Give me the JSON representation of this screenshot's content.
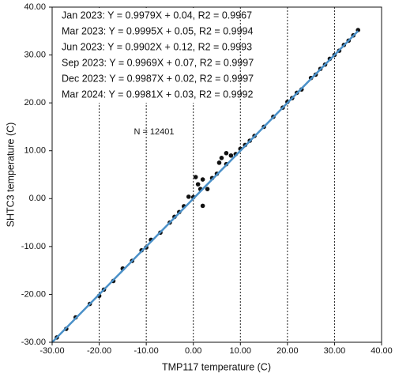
{
  "chart_data": {
    "type": "scatter",
    "xlabel": "TMP117 temperature (C)",
    "ylabel": "SHTC3 temperature (C)",
    "annotations": [
      "Jan 2023: Y = 0.9979X + 0.04, R2 = 0.9967",
      "Mar 2023: Y = 0.9995X + 0.05, R2 = 0.9994",
      "Jun 2023: Y = 0.9902X + 0.12, R2 = 0.9993",
      "Sep 2023: Y = 0.9969X + 0.07, R2 = 0.9997",
      "Dec 2023: Y = 0.9987X + 0.02, R2 = 0.9997",
      "Mar 2024: Y = 0.9981X + 0.03, R2 = 0.9992",
      "N = 12401"
    ],
    "xlim": [
      -30,
      40
    ],
    "ylim": [
      -30,
      40
    ],
    "xticks": [
      {
        "value": -30,
        "label": "-30.00"
      },
      {
        "value": -20,
        "label": "-20.00"
      },
      {
        "value": -10,
        "label": "-10.00"
      },
      {
        "value": 0,
        "label": "0.00"
      },
      {
        "value": 10,
        "label": "10.00"
      },
      {
        "value": 20,
        "label": "20.00"
      },
      {
        "value": 30,
        "label": "30.00"
      },
      {
        "value": 40,
        "label": "40.00"
      }
    ],
    "yticks": [
      {
        "value": -30,
        "label": "-30.00"
      },
      {
        "value": -20,
        "label": "-20.00"
      },
      {
        "value": -10,
        "label": "-10.00"
      },
      {
        "value": 0,
        "label": "0.00"
      },
      {
        "value": 10,
        "label": "10.00"
      },
      {
        "value": 20,
        "label": "20.00"
      },
      {
        "value": 30,
        "label": "30.00"
      },
      {
        "value": 40,
        "label": "40.00"
      }
    ],
    "xgrid": true,
    "series": [
      {
        "type": "scatter",
        "color": "#111111",
        "x": [
          -29,
          -27,
          -25,
          -22,
          -20,
          -19,
          -17,
          -15,
          -13,
          -11,
          -10,
          -9,
          -7,
          -5,
          -4,
          -3,
          -2,
          -1,
          0,
          0.5,
          1,
          1.5,
          2,
          2,
          3,
          4,
          5,
          5.5,
          6,
          7,
          7,
          8,
          9,
          10,
          11,
          12,
          13,
          15,
          17,
          19,
          20,
          21,
          22,
          23,
          25,
          26,
          27,
          28,
          29,
          30,
          31,
          32,
          33,
          34,
          35
        ],
        "values": [
          -29,
          -27.2,
          -24.8,
          -22,
          -20.3,
          -19,
          -17.2,
          -14.6,
          -13,
          -10.8,
          -10.2,
          -8.6,
          -7.1,
          -5,
          -3.8,
          -2.8,
          -1.6,
          0.4,
          0.3,
          4.5,
          3,
          2,
          4,
          -1.5,
          2,
          4.3,
          5.2,
          7.5,
          8.5,
          9.5,
          7.2,
          9,
          9.3,
          10.4,
          11.2,
          12.1,
          13.1,
          15,
          17.1,
          19,
          20.2,
          21,
          22.1,
          22.8,
          25.2,
          25.9,
          27.1,
          28,
          29.2,
          30,
          30.9,
          32.1,
          33,
          34.1,
          35.2
        ]
      },
      {
        "type": "line",
        "color": "#4a90c8",
        "x": [
          -30,
          35
        ],
        "values": [
          -30,
          35
        ]
      }
    ]
  }
}
